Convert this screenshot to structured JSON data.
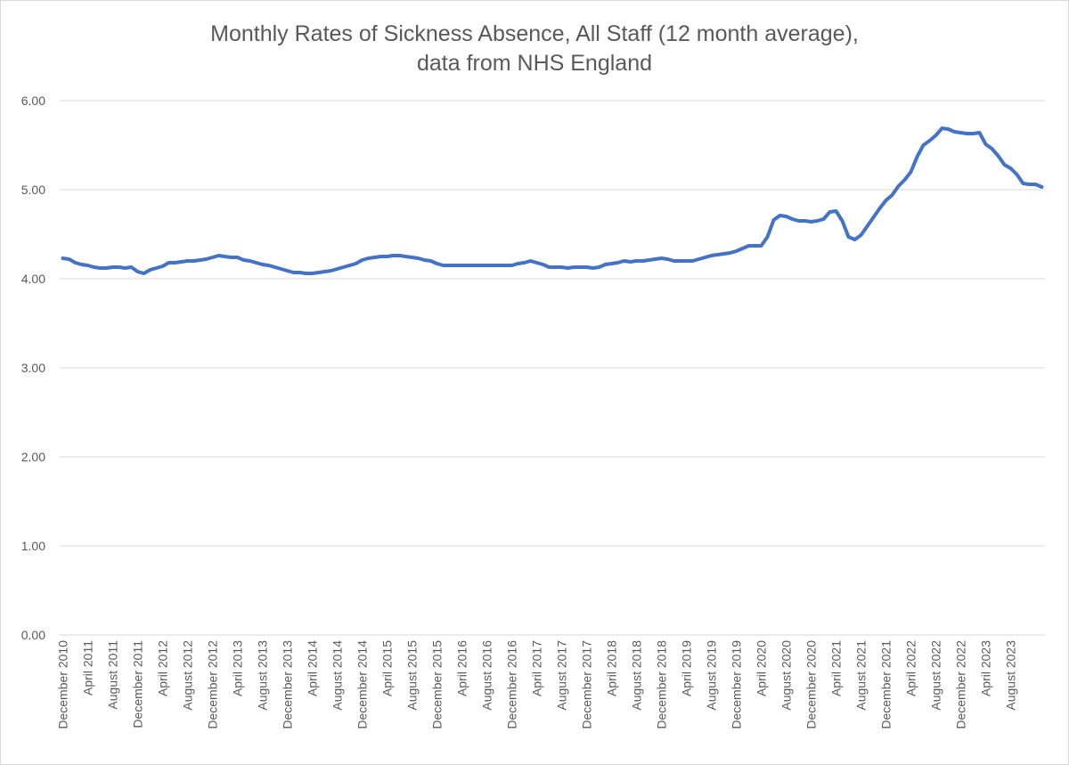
{
  "chart_data": {
    "type": "line",
    "title": "Monthly Rates of Sickness Absence, All Staff (12 month average),",
    "subtitle": "data from NHS England",
    "xlabel": "",
    "ylabel": "",
    "ylim": [
      0,
      6
    ],
    "yticks": [
      "0.00",
      "1.00",
      "2.00",
      "3.00",
      "4.00",
      "5.00",
      "6.00"
    ],
    "grid": true,
    "legend": "none",
    "colors": {
      "line": "#4472c4",
      "grid": "#d9d9d9",
      "text": "#595959"
    },
    "x_start": "December 2010",
    "x_tick_labels": [
      "December 2010",
      "April 2011",
      "August 2011",
      "December 2011",
      "April 2012",
      "August 2012",
      "December 2012",
      "April 2013",
      "August 2013",
      "December 2013",
      "April 2014",
      "August 2014",
      "December 2014",
      "April 2015",
      "August 2015",
      "December 2015",
      "April 2016",
      "August 2016",
      "December 2016",
      "April 2017",
      "August 2017",
      "December 2017",
      "April 2018",
      "August 2018",
      "December 2018",
      "April 2019",
      "August 2019",
      "December 2019",
      "April 2020",
      "August 2020",
      "December 2020",
      "April 2021",
      "August 2021",
      "December 2021",
      "April 2022",
      "August 2022",
      "December 2022",
      "April 2023",
      "August 2023"
    ],
    "series": [
      {
        "values": [
          4.23,
          4.22,
          4.18,
          4.16,
          4.15,
          4.13,
          4.12,
          4.12,
          4.13,
          4.13,
          4.12,
          4.13,
          4.08,
          4.06,
          4.1,
          4.12,
          4.14,
          4.18,
          4.18,
          4.19,
          4.2,
          4.2,
          4.21,
          4.22,
          4.24,
          4.26,
          4.25,
          4.24,
          4.24,
          4.21,
          4.2,
          4.18,
          4.16,
          4.15,
          4.13,
          4.11,
          4.09,
          4.07,
          4.07,
          4.06,
          4.06,
          4.07,
          4.08,
          4.09,
          4.11,
          4.13,
          4.15,
          4.17,
          4.21,
          4.23,
          4.24,
          4.25,
          4.25,
          4.26,
          4.26,
          4.25,
          4.24,
          4.23,
          4.21,
          4.2,
          4.17,
          4.15,
          4.15,
          4.15,
          4.15,
          4.15,
          4.15,
          4.15,
          4.15,
          4.15,
          4.15,
          4.15,
          4.15,
          4.17,
          4.18,
          4.2,
          4.18,
          4.16,
          4.13,
          4.13,
          4.13,
          4.12,
          4.13,
          4.13,
          4.13,
          4.12,
          4.13,
          4.16,
          4.17,
          4.18,
          4.2,
          4.19,
          4.2,
          4.2,
          4.21,
          4.22,
          4.23,
          4.22,
          4.2,
          4.2,
          4.2,
          4.2,
          4.22,
          4.24,
          4.26,
          4.27,
          4.28,
          4.29,
          4.31,
          4.34,
          4.37,
          4.37,
          4.37,
          4.47,
          4.66,
          4.71,
          4.7,
          4.67,
          4.65,
          4.65,
          4.64,
          4.65,
          4.67,
          4.75,
          4.76,
          4.65,
          4.47,
          4.44,
          4.49,
          4.59,
          4.69,
          4.79,
          4.88,
          4.94,
          5.04,
          5.11,
          5.2,
          5.37,
          5.5,
          5.55,
          5.61,
          5.69,
          5.68,
          5.65,
          5.64,
          5.63,
          5.63,
          5.64,
          5.51,
          5.46,
          5.38,
          5.28,
          5.24,
          5.17,
          5.07,
          5.06,
          5.06,
          5.03
        ]
      }
    ]
  }
}
